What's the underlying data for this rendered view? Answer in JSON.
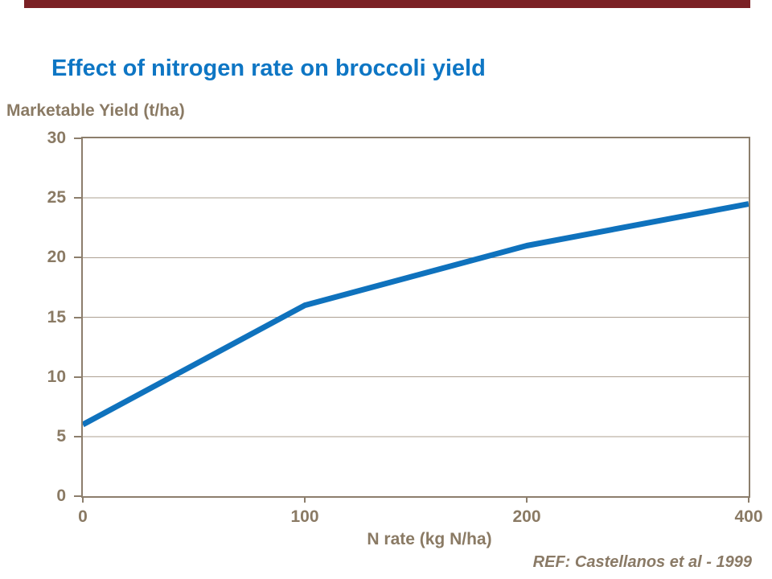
{
  "page": {
    "background_color": "#ffffff",
    "top_bar_color": "#7B2125"
  },
  "title": {
    "text": "Effect of nitrogen rate on broccoli yield",
    "color": "#0E76C4"
  },
  "chart_data": {
    "type": "line",
    "title": "Effect of nitrogen rate on broccoli yield",
    "categories": [
      "0",
      "100",
      "200",
      "400"
    ],
    "series": [
      {
        "name": "Marketable yield",
        "values": [
          6,
          16,
          21,
          24.5
        ],
        "color": "#0F72BD",
        "stroke_width": 7
      }
    ],
    "xlabel": "N rate (kg N/ha)",
    "ylabel": "Marketable Yield (t/ha)",
    "ylim": [
      0,
      30
    ],
    "yticks": [
      0,
      5,
      10,
      15,
      20,
      25,
      30
    ],
    "grid": "horizontal",
    "legend": "none",
    "category_axis_equally_spaced": true,
    "axis_color": "#8C7E6C",
    "grid_color": "#ADA092",
    "label_color": "#8A7A64"
  },
  "footer": {
    "ref_text": "REF: Castellanos et al - 1999",
    "color": "#8A7A66"
  }
}
